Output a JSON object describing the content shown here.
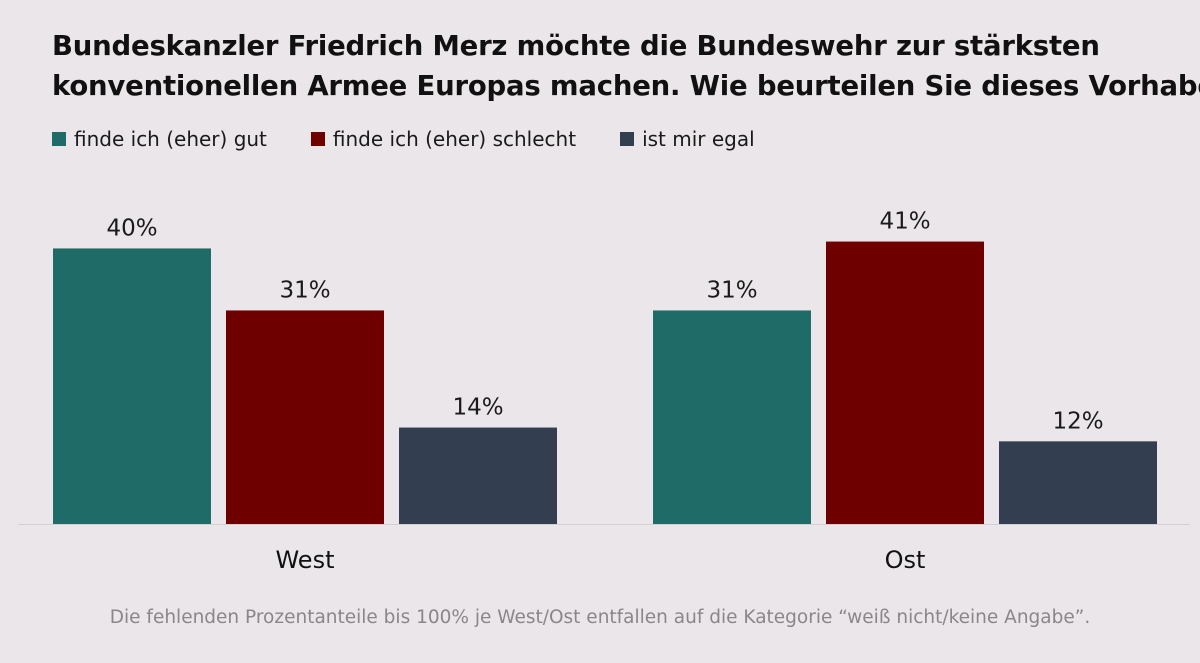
{
  "chart_data": {
    "type": "bar",
    "title": "Bundeskanzler Friedrich Merz möchte die Bundeswehr zur stärksten konventionellen Armee Europas machen. Wie beurteilen Sie dieses Vorhaben?",
    "title_lines": [
      "Bundeskanzler Friedrich Merz möchte die Bundeswehr zur stärksten",
      "konventionellen Armee Europas machen. Wie beurteilen Sie dieses Vorhaben?"
    ],
    "categories": [
      "West",
      "Ost"
    ],
    "series": [
      {
        "name": "finde ich (eher) gut",
        "color": "#1f6b68",
        "values": [
          40,
          31
        ]
      },
      {
        "name": "finde ich (eher) schlecht",
        "color": "#6e0000",
        "values": [
          31,
          41
        ]
      },
      {
        "name": "ist mir egal",
        "color": "#333e51",
        "values": [
          14,
          12
        ]
      }
    ],
    "value_suffix": "%",
    "ylim": [
      0,
      45
    ],
    "grid": false,
    "legend_position": "top-left",
    "xlabel": "",
    "ylabel": "",
    "footnote": "Die fehlenden Prozentanteile bis 100% je West/Ost entfallen auf die Kategorie “weiß nicht/keine Angabe”."
  }
}
